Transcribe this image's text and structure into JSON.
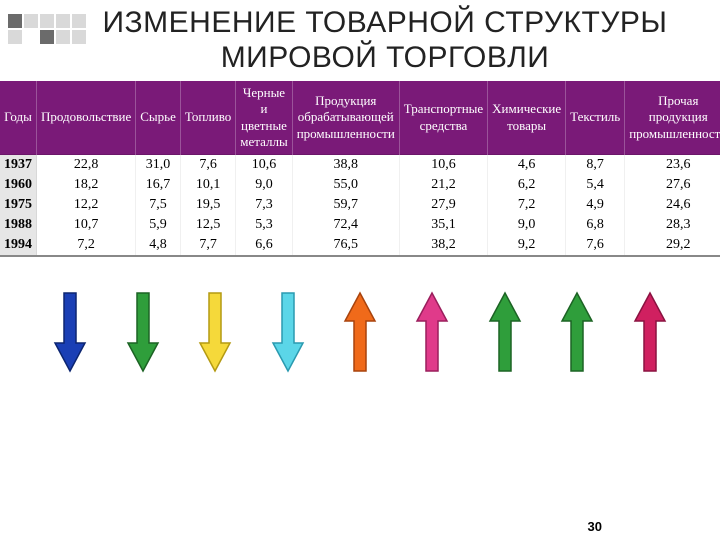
{
  "decoration": {
    "grid": [
      "d",
      "l",
      "l",
      "l",
      "l",
      "l",
      "b",
      "d",
      "l",
      "l"
    ]
  },
  "title": "ИЗМЕНЕНИЕ ТОВАРНОЙ СТРУКТУРЫ МИРОВОЙ ТОРГОВЛИ",
  "table": {
    "header_bg": "#7a1a78",
    "header_fg": "#ffffff",
    "year_col_bg": "#e6e6e6",
    "columns": [
      "Годы",
      "Продовольствие",
      "Сырье",
      "Топливо",
      "Черные и цветные металлы",
      "Продукция обрабатывающей промышленности",
      "Транспортные средства",
      "Химические товары",
      "Текстиль",
      "Прочая продукция промышленности"
    ],
    "rows": [
      [
        "1937",
        "22,8",
        "31,0",
        "7,6",
        "10,6",
        "38,8",
        "10,6",
        "4,6",
        "8,7",
        "23,6"
      ],
      [
        "1960",
        "18,2",
        "16,7",
        "10,1",
        "9,0",
        "55,0",
        "21,2",
        "6,2",
        "5,4",
        "27,6"
      ],
      [
        "1975",
        "12,2",
        "7,5",
        "19,5",
        "7,3",
        "59,7",
        "27,9",
        "7,2",
        "4,9",
        "24,6"
      ],
      [
        "1988",
        "10,7",
        "5,9",
        "12,5",
        "5,3",
        "72,4",
        "35,1",
        "9,0",
        "6,8",
        "28,3"
      ],
      [
        "1994",
        "7,2",
        "4,8",
        "7,7",
        "6,6",
        "76,5",
        "38,2",
        "9,2",
        "7,6",
        "29,2"
      ]
    ]
  },
  "arrows": [
    {
      "direction": "down",
      "fill": "#1a3fb5",
      "stroke": "#0c2570"
    },
    {
      "direction": "down",
      "fill": "#2f9e3b",
      "stroke": "#1c6324"
    },
    {
      "direction": "down",
      "fill": "#f5d93a",
      "stroke": "#b49a12"
    },
    {
      "direction": "down",
      "fill": "#5bd6e8",
      "stroke": "#2a9ab0"
    },
    {
      "direction": "up",
      "fill": "#f06a1a",
      "stroke": "#a8430d"
    },
    {
      "direction": "up",
      "fill": "#e03a8a",
      "stroke": "#9a1e5c"
    },
    {
      "direction": "up",
      "fill": "#2f9e3b",
      "stroke": "#1c6324"
    },
    {
      "direction": "up",
      "fill": "#2f9e3b",
      "stroke": "#1c6324"
    },
    {
      "direction": "up",
      "fill": "#d02060",
      "stroke": "#8a1240"
    }
  ],
  "page_number": "30"
}
